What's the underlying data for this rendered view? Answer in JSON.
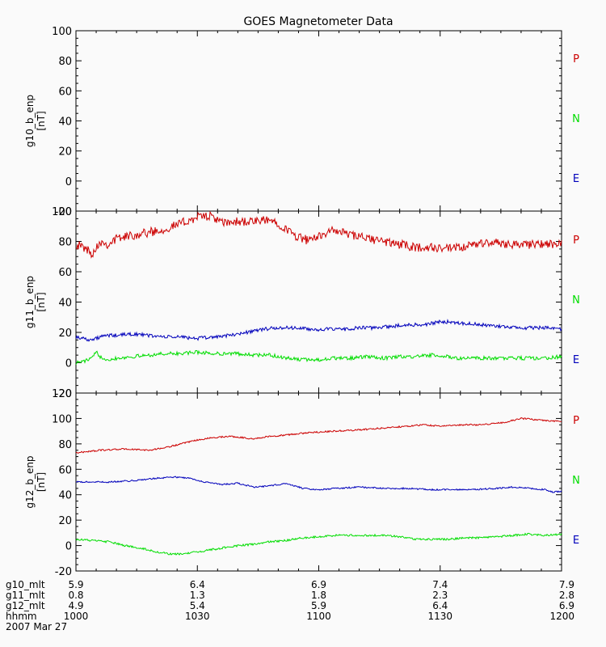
{
  "title": "GOES Magnetometer Data",
  "component_labels": {
    "P": "P",
    "N": "N",
    "E": "E"
  },
  "colors": {
    "P": "#cc0000",
    "N": "#00dd00",
    "E": "#0000bb",
    "axis": "#000000",
    "background": "#fafafa"
  },
  "chart_data": [
    {
      "type": "line",
      "panel": "g10",
      "ylabel": "g10_b_enp",
      "yunit": "[nT]",
      "ylim": [
        -20,
        100
      ],
      "yticks": [
        -20,
        0,
        20,
        40,
        60,
        80,
        100
      ],
      "x_unit": "minutes since 1000",
      "xlim": [
        0,
        120
      ],
      "series": []
    },
    {
      "type": "line",
      "panel": "g11",
      "ylabel": "g11_b_enp",
      "yunit": "[nT]",
      "ylim": [
        -20,
        100
      ],
      "yticks": [
        -20,
        0,
        20,
        40,
        60,
        80,
        100
      ],
      "x_unit": "minutes since 1000",
      "xlim": [
        0,
        120
      ],
      "series": [
        {
          "name": "P",
          "color": "#cc0000",
          "noise": 3,
          "points": [
            [
              0,
              78
            ],
            [
              2,
              76
            ],
            [
              4,
              72
            ],
            [
              6,
              80
            ],
            [
              8,
              78
            ],
            [
              10,
              82
            ],
            [
              14,
              84
            ],
            [
              18,
              86
            ],
            [
              22,
              88
            ],
            [
              26,
              92
            ],
            [
              30,
              96
            ],
            [
              32,
              97
            ],
            [
              34,
              96
            ],
            [
              36,
              92
            ],
            [
              40,
              93
            ],
            [
              44,
              93
            ],
            [
              48,
              94
            ],
            [
              50,
              92
            ],
            [
              52,
              88
            ],
            [
              54,
              84
            ],
            [
              56,
              82
            ],
            [
              58,
              80
            ],
            [
              60,
              84
            ],
            [
              62,
              86
            ],
            [
              64,
              87
            ],
            [
              66,
              86
            ],
            [
              68,
              84
            ],
            [
              72,
              82
            ],
            [
              76,
              80
            ],
            [
              80,
              78
            ],
            [
              84,
              76
            ],
            [
              88,
              76
            ],
            [
              92,
              75
            ],
            [
              96,
              76
            ],
            [
              100,
              79
            ],
            [
              104,
              79
            ],
            [
              110,
              78
            ],
            [
              116,
              78
            ],
            [
              120,
              78
            ]
          ]
        },
        {
          "name": "N",
          "color": "#00dd00",
          "noise": 1.2,
          "points": [
            [
              0,
              0
            ],
            [
              2,
              1
            ],
            [
              4,
              3
            ],
            [
              5,
              7
            ],
            [
              6,
              4
            ],
            [
              8,
              2
            ],
            [
              10,
              3
            ],
            [
              14,
              4
            ],
            [
              18,
              5
            ],
            [
              22,
              6
            ],
            [
              26,
              6
            ],
            [
              30,
              7
            ],
            [
              34,
              6
            ],
            [
              40,
              6
            ],
            [
              44,
              5
            ],
            [
              48,
              5
            ],
            [
              52,
              3
            ],
            [
              56,
              2
            ],
            [
              60,
              2
            ],
            [
              64,
              3
            ],
            [
              68,
              3
            ],
            [
              72,
              4
            ],
            [
              76,
              3
            ],
            [
              80,
              4
            ],
            [
              84,
              4
            ],
            [
              88,
              5
            ],
            [
              90,
              4
            ],
            [
              92,
              4
            ],
            [
              94,
              3
            ],
            [
              100,
              3
            ],
            [
              110,
              3
            ],
            [
              116,
              3
            ],
            [
              120,
              4
            ]
          ]
        },
        {
          "name": "E",
          "color": "#0000bb",
          "noise": 1.2,
          "points": [
            [
              0,
              17
            ],
            [
              2,
              16
            ],
            [
              4,
              15
            ],
            [
              6,
              17
            ],
            [
              8,
              18
            ],
            [
              10,
              18
            ],
            [
              14,
              19
            ],
            [
              18,
              18
            ],
            [
              22,
              17
            ],
            [
              26,
              17
            ],
            [
              30,
              16
            ],
            [
              34,
              17
            ],
            [
              38,
              18
            ],
            [
              42,
              20
            ],
            [
              46,
              22
            ],
            [
              50,
              23
            ],
            [
              54,
              23
            ],
            [
              58,
              22
            ],
            [
              62,
              22
            ],
            [
              66,
              22
            ],
            [
              70,
              23
            ],
            [
              74,
              23
            ],
            [
              78,
              24
            ],
            [
              82,
              25
            ],
            [
              86,
              25
            ],
            [
              88,
              26
            ],
            [
              90,
              27
            ],
            [
              92,
              27
            ],
            [
              96,
              26
            ],
            [
              100,
              25
            ],
            [
              104,
              24
            ],
            [
              110,
              23
            ],
            [
              116,
              23
            ],
            [
              120,
              22
            ]
          ]
        }
      ]
    },
    {
      "type": "line",
      "panel": "g12",
      "ylabel": "g12_b_enp",
      "yunit": "[nT]",
      "ylim": [
        -20,
        120
      ],
      "yticks": [
        -20,
        0,
        20,
        40,
        60,
        80,
        100,
        120
      ],
      "x_unit": "minutes since 1000",
      "xlim": [
        0,
        120
      ],
      "series": [
        {
          "name": "P",
          "color": "#cc0000",
          "noise": 0.6,
          "points": [
            [
              0,
              73
            ],
            [
              6,
              75
            ],
            [
              12,
              76
            ],
            [
              18,
              75
            ],
            [
              22,
              77
            ],
            [
              26,
              80
            ],
            [
              30,
              83
            ],
            [
              34,
              85
            ],
            [
              38,
              86
            ],
            [
              44,
              84
            ],
            [
              48,
              86
            ],
            [
              52,
              87
            ],
            [
              58,
              89
            ],
            [
              64,
              90
            ],
            [
              70,
              91
            ],
            [
              78,
              93
            ],
            [
              82,
              94
            ],
            [
              86,
              95
            ],
            [
              90,
              94
            ],
            [
              96,
              95
            ],
            [
              100,
              95
            ],
            [
              106,
              97
            ],
            [
              110,
              100
            ],
            [
              114,
              99
            ],
            [
              118,
              98
            ],
            [
              120,
              98
            ]
          ]
        },
        {
          "name": "N",
          "color": "#00dd00",
          "noise": 0.8,
          "points": [
            [
              0,
              5
            ],
            [
              4,
              4
            ],
            [
              8,
              3
            ],
            [
              12,
              0
            ],
            [
              16,
              -2
            ],
            [
              20,
              -5
            ],
            [
              24,
              -7
            ],
            [
              28,
              -6
            ],
            [
              32,
              -4
            ],
            [
              36,
              -2
            ],
            [
              40,
              0
            ],
            [
              44,
              1
            ],
            [
              48,
              3
            ],
            [
              52,
              4
            ],
            [
              56,
              6
            ],
            [
              60,
              7
            ],
            [
              64,
              8
            ],
            [
              68,
              8
            ],
            [
              72,
              8
            ],
            [
              76,
              8
            ],
            [
              80,
              7
            ],
            [
              84,
              5
            ],
            [
              88,
              5
            ],
            [
              92,
              5
            ],
            [
              96,
              6
            ],
            [
              100,
              6
            ],
            [
              104,
              7
            ],
            [
              108,
              8
            ],
            [
              112,
              9
            ],
            [
              116,
              8
            ],
            [
              120,
              9
            ]
          ]
        },
        {
          "name": "E",
          "color": "#0000bb",
          "noise": 0.6,
          "points": [
            [
              0,
              50
            ],
            [
              4,
              50
            ],
            [
              8,
              50
            ],
            [
              14,
              51
            ],
            [
              20,
              53
            ],
            [
              24,
              54
            ],
            [
              28,
              53
            ],
            [
              32,
              50
            ],
            [
              36,
              48
            ],
            [
              40,
              49
            ],
            [
              44,
              46
            ],
            [
              48,
              47
            ],
            [
              52,
              49
            ],
            [
              56,
              45
            ],
            [
              60,
              44
            ],
            [
              64,
              45
            ],
            [
              70,
              46
            ],
            [
              76,
              45
            ],
            [
              82,
              45
            ],
            [
              88,
              44
            ],
            [
              92,
              44
            ],
            [
              98,
              44
            ],
            [
              104,
              45
            ],
            [
              108,
              46
            ],
            [
              112,
              45
            ],
            [
              116,
              44
            ],
            [
              118,
              42
            ],
            [
              120,
              43
            ]
          ]
        }
      ]
    }
  ],
  "time_axis": {
    "x": [
      0,
      30,
      60,
      90,
      120
    ],
    "rows": [
      {
        "label": "g10_mlt",
        "values": [
          "5.9",
          "6.4",
          "6.9",
          "7.4",
          "7.9"
        ]
      },
      {
        "label": "g11_mlt",
        "values": [
          "0.8",
          "1.3",
          "1.8",
          "2.3",
          "2.8"
        ]
      },
      {
        "label": "g12_mlt",
        "values": [
          "4.9",
          "5.4",
          "5.9",
          "6.4",
          "6.9"
        ]
      },
      {
        "label": "hhmm",
        "values": [
          "1000",
          "1030",
          "1100",
          "1130",
          "1200"
        ]
      }
    ],
    "date": "2007 Mar 27"
  }
}
